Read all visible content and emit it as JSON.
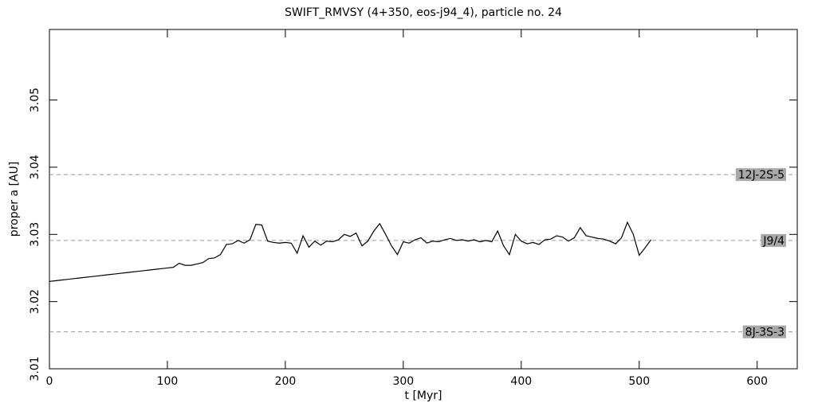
{
  "chart_data": {
    "type": "line",
    "title": "SWIFT_RMVSY (4+350, eos-j94_4), particle no. 24",
    "x_label": "t [Myr]",
    "y_label": "proper a [AU]",
    "xlim": [
      0,
      634
    ],
    "ylim": [
      3.01,
      3.0605
    ],
    "xticks": [
      0,
      100,
      200,
      300,
      400,
      500,
      600
    ],
    "yticks": [
      3.01,
      3.02,
      3.03,
      3.04,
      3.05
    ],
    "reference_lines": [
      {
        "label": "12J-2S-5",
        "value": 3.0389
      },
      {
        "label": "J9/4",
        "value": 3.0291
      },
      {
        "label": "8J-3S-3",
        "value": 3.0155
      }
    ],
    "series": [
      {
        "color": "#000000",
        "x": [
          0,
          5,
          10,
          15,
          20,
          25,
          30,
          35,
          40,
          45,
          50,
          55,
          60,
          65,
          70,
          75,
          80,
          85,
          90,
          95,
          100,
          105,
          110,
          115,
          120,
          125,
          130,
          135,
          140,
          145,
          150,
          155,
          160,
          165,
          170,
          175,
          180,
          185,
          190,
          195,
          200,
          205,
          210,
          215,
          220,
          225,
          230,
          235,
          240,
          245,
          250,
          255,
          260,
          265,
          270,
          275,
          280,
          285,
          290,
          295,
          300,
          305,
          310,
          315,
          320,
          325,
          330,
          335,
          340,
          345,
          350,
          355,
          360,
          365,
          370,
          375,
          380,
          385,
          390,
          395,
          400,
          405,
          410,
          415,
          420,
          425,
          430,
          435,
          440,
          445,
          450,
          455,
          460,
          465,
          470,
          475,
          480,
          485,
          490,
          495,
          500,
          505,
          510
        ],
        "values": [
          3.023,
          3.0231,
          3.0232,
          3.0233,
          3.0234,
          3.0235,
          3.0236,
          3.0237,
          3.0238,
          3.0239,
          3.024,
          3.0241,
          3.0242,
          3.0243,
          3.0244,
          3.0245,
          3.0246,
          3.0247,
          3.0248,
          3.0249,
          3.025,
          3.0251,
          3.0257,
          3.0254,
          3.0254,
          3.0256,
          3.0258,
          3.0264,
          3.0265,
          3.027,
          3.0285,
          3.0286,
          3.0291,
          3.0287,
          3.0292,
          3.0315,
          3.0314,
          3.029,
          3.0288,
          3.0287,
          3.0288,
          3.0287,
          3.0272,
          3.0298,
          3.0281,
          3.029,
          3.0284,
          3.029,
          3.0289,
          3.0292,
          3.03,
          3.0297,
          3.0302,
          3.0283,
          3.029,
          3.0305,
          3.0316,
          3.03,
          3.0283,
          3.027,
          3.0289,
          3.0287,
          3.0292,
          3.0295,
          3.0287,
          3.029,
          3.0289,
          3.0292,
          3.0294,
          3.0291,
          3.0292,
          3.029,
          3.0292,
          3.0289,
          3.0291,
          3.0289,
          3.0305,
          3.0283,
          3.027,
          3.03,
          3.029,
          3.0286,
          3.0288,
          3.0285,
          3.0292,
          3.0293,
          3.0298,
          3.0296,
          3.029,
          3.0295,
          3.031,
          3.0298,
          3.0296,
          3.0294,
          3.0293,
          3.029,
          3.0286,
          3.0295,
          3.0318,
          3.03,
          3.0269,
          3.028,
          3.0292
        ]
      }
    ]
  }
}
